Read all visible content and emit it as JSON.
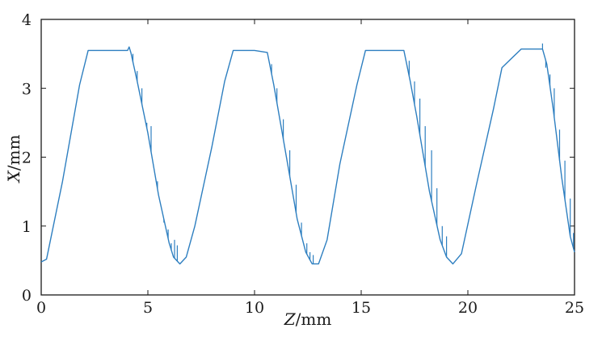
{
  "chart_data": {
    "type": "line",
    "xlabel_var": "Z",
    "xlabel_unit": "/mm",
    "ylabel_var": "X",
    "ylabel_unit": "/mm",
    "xlim": [
      0,
      25
    ],
    "ylim": [
      0,
      4
    ],
    "xticks": [
      0,
      5,
      10,
      15,
      20,
      25
    ],
    "xtick_labels": [
      "0",
      "5",
      "10",
      "15",
      "20",
      "25"
    ],
    "yticks": [
      0,
      1,
      2,
      3,
      4
    ],
    "ytick_labels": [
      "0",
      "1",
      "2",
      "3",
      "4"
    ],
    "grid": false,
    "legend": false,
    "color": "#2e7fc0",
    "series": [
      {
        "x": [
          0,
          0.25,
          1.0,
          1.8,
          2.2,
          3.0,
          4.05,
          4.12,
          4.2,
          4.5,
          5.0,
          5.5,
          6.0,
          6.2,
          6.5,
          6.8,
          7.2,
          8.0,
          8.6,
          9.0,
          10.0,
          10.6,
          10.9,
          11.3,
          12.0,
          12.4,
          12.7,
          13.0,
          13.4,
          14.0,
          14.8,
          15.2,
          16.0,
          17.0,
          17.3,
          17.6,
          18.2,
          18.7,
          19.0,
          19.3,
          19.7,
          20.4,
          21.2,
          21.6,
          22.5,
          23.5,
          23.7,
          24.0,
          24.4,
          24.8,
          25.0
        ],
        "y": [
          0.48,
          0.52,
          1.65,
          3.05,
          3.55,
          3.55,
          3.55,
          3.6,
          3.52,
          3.1,
          2.35,
          1.45,
          0.75,
          0.55,
          0.45,
          0.55,
          1.0,
          2.15,
          3.1,
          3.55,
          3.55,
          3.52,
          3.05,
          2.35,
          1.1,
          0.62,
          0.45,
          0.45,
          0.8,
          1.9,
          3.05,
          3.55,
          3.55,
          3.55,
          3.1,
          2.6,
          1.5,
          0.8,
          0.55,
          0.45,
          0.6,
          1.6,
          2.7,
          3.3,
          3.57,
          3.57,
          3.35,
          2.7,
          1.7,
          0.85,
          0.62
        ]
      }
    ],
    "spikes": [
      {
        "x": 4.3,
        "y": 3.5
      },
      {
        "x": 4.5,
        "y": 3.25
      },
      {
        "x": 4.72,
        "y": 3.0
      },
      {
        "x": 4.95,
        "y": 2.5
      },
      {
        "x": 5.15,
        "y": 2.45
      },
      {
        "x": 5.45,
        "y": 1.65
      },
      {
        "x": 5.75,
        "y": 1.05
      },
      {
        "x": 5.95,
        "y": 0.95
      },
      {
        "x": 6.1,
        "y": 0.75
      },
      {
        "x": 6.25,
        "y": 0.8
      },
      {
        "x": 6.38,
        "y": 0.72
      },
      {
        "x": 10.8,
        "y": 3.35
      },
      {
        "x": 11.05,
        "y": 3.0
      },
      {
        "x": 11.35,
        "y": 2.55
      },
      {
        "x": 11.65,
        "y": 2.1
      },
      {
        "x": 11.95,
        "y": 1.6
      },
      {
        "x": 12.2,
        "y": 1.05
      },
      {
        "x": 12.45,
        "y": 0.75
      },
      {
        "x": 12.6,
        "y": 0.62
      },
      {
        "x": 12.75,
        "y": 0.58
      },
      {
        "x": 17.25,
        "y": 3.4
      },
      {
        "x": 17.5,
        "y": 3.1
      },
      {
        "x": 17.75,
        "y": 2.85
      },
      {
        "x": 18.0,
        "y": 2.45
      },
      {
        "x": 18.3,
        "y": 2.1
      },
      {
        "x": 18.55,
        "y": 1.55
      },
      {
        "x": 18.8,
        "y": 1.0
      },
      {
        "x": 19.0,
        "y": 0.85
      },
      {
        "x": 23.5,
        "y": 3.65
      },
      {
        "x": 23.65,
        "y": 3.3
      },
      {
        "x": 23.85,
        "y": 3.2
      },
      {
        "x": 24.05,
        "y": 3.0
      },
      {
        "x": 24.3,
        "y": 2.4
      },
      {
        "x": 24.55,
        "y": 1.95
      },
      {
        "x": 24.8,
        "y": 1.4
      },
      {
        "x": 24.95,
        "y": 0.9
      }
    ]
  }
}
